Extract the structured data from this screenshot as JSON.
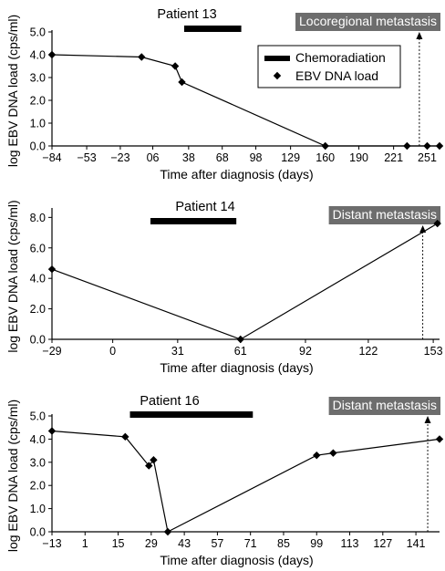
{
  "colors": {
    "ink": "#000000",
    "badge_bg": "#6d6d6d",
    "badge_text": "#ffffff",
    "background": "#ffffff"
  },
  "legend": {
    "chemo_label": "Chemoradiation",
    "ebv_label": "EBV DNA load"
  },
  "chart_data": [
    {
      "type": "line",
      "title": "Patient 13",
      "event_label": "Locoregional metastasis",
      "xlabel": "Time after diagnosis (days)",
      "ylabel": "log EBV DNA load (cps/ml)",
      "x_ticks": [
        -84,
        -53,
        -23,
        6,
        38,
        68,
        98,
        129,
        160,
        190,
        221,
        251
      ],
      "x_tick_labels": [
        "−84",
        "−53",
        "−23",
        "06",
        "38",
        "68",
        "98",
        "129",
        "160",
        "190",
        "221",
        "251"
      ],
      "xlim": [
        -84,
        262
      ],
      "y_ticks": [
        0,
        1,
        2,
        3,
        4,
        5
      ],
      "y_tick_labels": [
        "0.0",
        "1.0",
        "2.0",
        "3.0",
        "4.0",
        "5.0"
      ],
      "ylim": [
        0,
        5
      ],
      "chemoradiation": [
        34,
        85
      ],
      "event_day": 244,
      "show_legend": true,
      "series": [
        {
          "name": "EBV DNA load",
          "x": [
            -84,
            -4,
            26,
            32,
            160,
            233,
            251,
            262
          ],
          "y": [
            4.0,
            3.9,
            3.5,
            2.8,
            0.0,
            0.0,
            0.0,
            0.0
          ]
        }
      ]
    },
    {
      "type": "line",
      "title": "Patient 14",
      "event_label": "Distant metastasis",
      "xlabel": "Time after diagnosis (days)",
      "ylabel": "log EBV DNA load (cps/ml)",
      "x_ticks": [
        -29,
        0,
        31,
        61,
        92,
        122,
        153
      ],
      "x_tick_labels": [
        "−29",
        "0",
        "31",
        "61",
        "92",
        "122",
        "153"
      ],
      "xlim": [
        -29,
        156
      ],
      "y_ticks": [
        0,
        2,
        4,
        6,
        8
      ],
      "y_tick_labels": [
        "0.0",
        "2.0",
        "4.0",
        "6.0",
        "8.0"
      ],
      "ylim": [
        0,
        8.5
      ],
      "chemoradiation": [
        18,
        59
      ],
      "event_day": 148,
      "show_legend": false,
      "series": [
        {
          "name": "EBV DNA load",
          "x": [
            -29,
            61,
            155
          ],
          "y": [
            4.6,
            0.0,
            7.6
          ]
        }
      ]
    },
    {
      "type": "line",
      "title": "Patient 16",
      "event_label": "Distant metastasis",
      "xlabel": "Time after diagnosis (days)",
      "ylabel": "log EBV DNA load (cps/ml)",
      "x_ticks": [
        -13,
        1,
        15,
        29,
        43,
        57,
        71,
        85,
        99,
        113,
        127,
        141
      ],
      "x_tick_labels": [
        "−13",
        "1",
        "15",
        "29",
        "43",
        "57",
        "71",
        "85",
        "99",
        "113",
        "127",
        "141"
      ],
      "xlim": [
        -13,
        151
      ],
      "y_ticks": [
        0,
        1,
        2,
        3,
        4,
        5
      ],
      "y_tick_labels": [
        "0.0",
        "1.0",
        "2.0",
        "3.0",
        "4.0",
        "5.0"
      ],
      "ylim": [
        0,
        5
      ],
      "chemoradiation": [
        20,
        72
      ],
      "event_day": 146,
      "show_legend": false,
      "series": [
        {
          "name": "EBV DNA load",
          "x": [
            -13,
            18,
            28,
            30,
            36,
            99,
            106,
            151
          ],
          "y": [
            4.35,
            4.1,
            2.85,
            3.1,
            0.0,
            3.3,
            3.4,
            4.0
          ]
        }
      ]
    }
  ]
}
